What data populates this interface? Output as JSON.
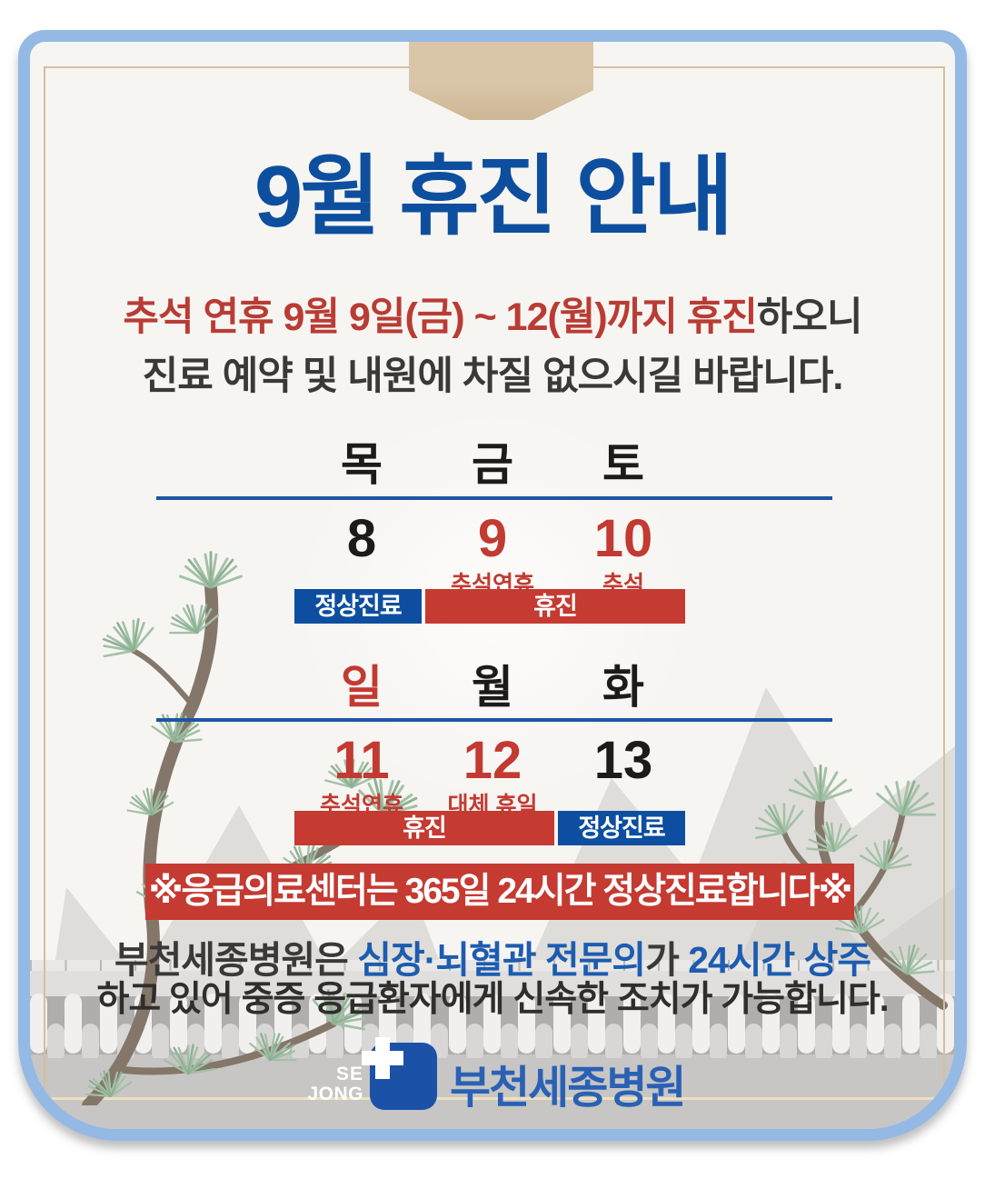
{
  "poster": {
    "title": "9월 휴진 안내",
    "subtitle": {
      "line1_highlight": "추석 연휴 9월 9일(금) ~ 12(월)까지 휴진",
      "line1_rest": "하오니",
      "line2": "진료 예약 및 내원에 차질 없으시길 바랍니다."
    },
    "calendar": {
      "week1": {
        "headers": [
          "목",
          "금",
          "토"
        ],
        "dates": [
          {
            "num": "8",
            "type": "normal",
            "note": ""
          },
          {
            "num": "9",
            "type": "holiday",
            "note": "추석연휴"
          },
          {
            "num": "10",
            "type": "holiday",
            "note": "추석"
          }
        ],
        "bars": [
          {
            "label": "정상진료",
            "type": "open"
          },
          {
            "label": "휴진",
            "type": "closed"
          }
        ]
      },
      "week2": {
        "headers": [
          "일",
          "월",
          "화"
        ],
        "dates": [
          {
            "num": "11",
            "type": "holiday",
            "note": "추석연휴"
          },
          {
            "num": "12",
            "type": "holiday",
            "note": "대체 휴일"
          },
          {
            "num": "13",
            "type": "normal",
            "note": ""
          }
        ],
        "bars": [
          {
            "label": "휴진",
            "type": "closed"
          },
          {
            "label": "정상진료",
            "type": "open"
          }
        ]
      }
    },
    "notice_banner": "※응급의료센터는 365일 24시간 정상진료합니다※",
    "info": {
      "line1_part1": "부천세종병원은 ",
      "line1_part2": "심장·뇌혈관 전문의",
      "line1_part3": "가 ",
      "line1_part4": "24시간 상주",
      "line2": "하고 있어 중증 응급환자에게 신속한 조치가 가능합니다."
    },
    "logo": {
      "mark_line1": "SE",
      "mark_line2": "JONG",
      "hospital_name": "부천세종병원"
    },
    "colors": {
      "title_blue": "#0d4f9e",
      "text_red": "#c23a31",
      "bar_blue": "#0d4ea0",
      "bar_red": "#c53a31",
      "text_dark": "#3a3938",
      "frame_blue": "#93b9e4",
      "ribbon_tan": "#d7c2a4",
      "logo_blue": "#1b52a8"
    }
  }
}
